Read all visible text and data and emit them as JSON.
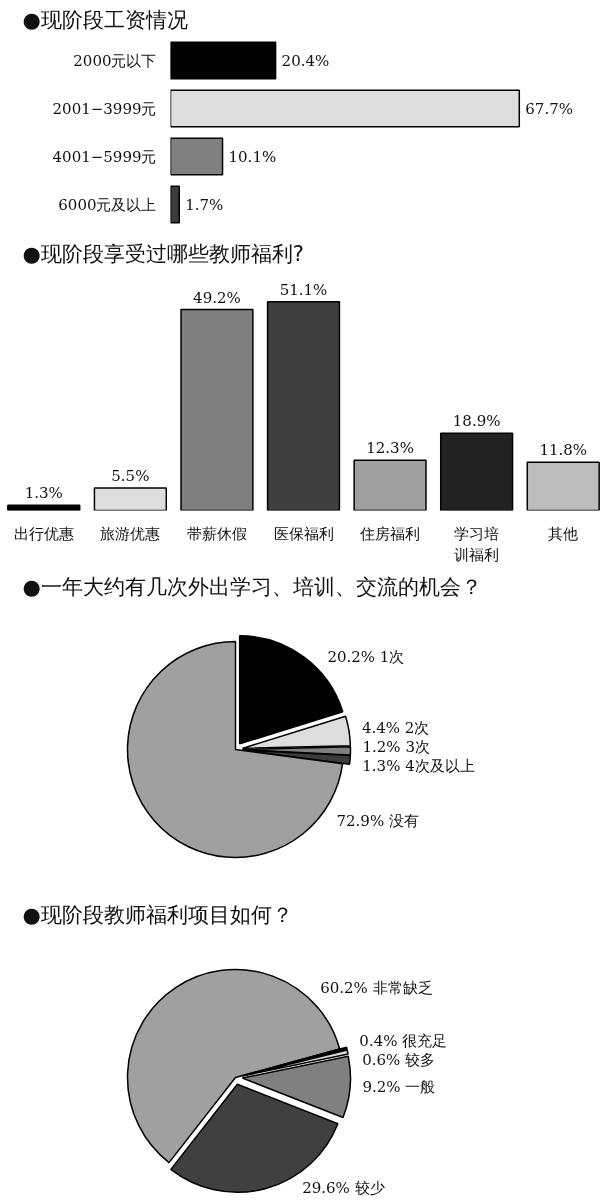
{
  "chart_data": [
    {
      "type": "bar",
      "orientation": "horizontal",
      "title": "●现阶段工资情况",
      "categories": [
        "2000元以下",
        "2001−3999元",
        "4001−5999元",
        "6000元及以上"
      ],
      "values": [
        20.4,
        67.7,
        10.1,
        1.7
      ],
      "colors": [
        "#000000",
        "#dddddd",
        "#808080",
        "#3c3c3c"
      ],
      "value_labels": [
        "20.4%",
        "67.7%",
        "10.1%",
        "1.7%"
      ],
      "tick_labels": "y"
    },
    {
      "type": "bar",
      "title": "●现阶段享受过哪些教师福利?",
      "categories": [
        "出行优惠",
        "旅游优惠",
        "带薪休假",
        "医保福利",
        "住房福利",
        "学习培训福利",
        "其他"
      ],
      "values": [
        1.3,
        5.5,
        49.2,
        51.1,
        12.3,
        18.9,
        11.8
      ],
      "colors": [
        "#000000",
        "#dddddd",
        "#7f7f7f",
        "#3f3f3f",
        "#a0a0a0",
        "#222222",
        "#bdbdbd"
      ],
      "value_labels": [
        "1.3%",
        "5.5%",
        "49.2%",
        "51.1%",
        "12.3%",
        "18.9%",
        "11.8%"
      ],
      "tick_labels": "x"
    },
    {
      "type": "pie",
      "title": "●一年大约有几次外出学习、培训、交流的机会？",
      "categories": [
        "1次",
        "2次",
        "3次",
        "4次及以上",
        "没有"
      ],
      "values": [
        20.2,
        4.4,
        1.2,
        1.3,
        72.9
      ],
      "colors": [
        "#000000",
        "#dddddd",
        "#808080",
        "#3c3c3c",
        "#a0a0a0"
      ],
      "value_labels": [
        "20.2%",
        "4.4%",
        "1.2%",
        "1.3%",
        "72.9%"
      ]
    },
    {
      "type": "pie",
      "title": "●现阶段教师福利项目如何？",
      "categories": [
        "非常缺乏",
        "很充足",
        "较多",
        "一般",
        "较少"
      ],
      "values": [
        60.2,
        0.4,
        0.6,
        9.2,
        29.6
      ],
      "colors": [
        "#a0a0a0",
        "#000000",
        "#dddddd",
        "#808080",
        "#404040"
      ],
      "value_labels": [
        "60.2%",
        "0.4%",
        "0.6%",
        "9.2%",
        "29.6%"
      ]
    }
  ]
}
